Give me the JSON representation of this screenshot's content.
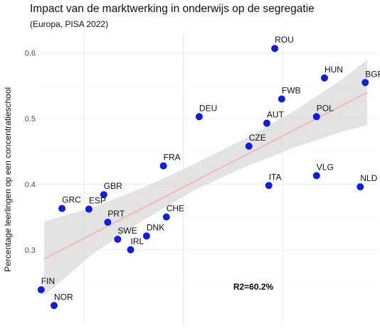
{
  "header": {
    "title": "Impact van de marktwerking in onderwijs op de segregatie",
    "subtitle": "(Europa, PISA 2022)"
  },
  "chart_data": {
    "type": "scatter",
    "title": "Impact van de marktwerking in onderwijs op de segregatie",
    "subtitle": "(Europa, PISA 2022)",
    "xlabel": "",
    "ylabel": "Percentage leerlingen op een concentratieschool",
    "xlim": [
      -1.45,
      1.95
    ],
    "ylim": [
      0.185,
      0.63
    ],
    "yticks": [
      0.3,
      0.4,
      0.5,
      0.6
    ],
    "ytick_labels": [
      "0.3",
      "0.4",
      "0.5",
      "0.6"
    ],
    "xgrid": [
      -1.0,
      0.0,
      1.0
    ],
    "grid": true,
    "annotation": "R2=60.2%",
    "point_color": "#0a1ee8",
    "trend_color": "#f4b6c2",
    "ci_color": "#d9d9d9",
    "trend_line": {
      "x": [
        -1.4,
        1.85
      ],
      "y": [
        0.286,
        0.54
      ]
    },
    "confidence_band": {
      "x": [
        -1.4,
        -0.9,
        -0.4,
        0.1,
        0.6,
        1.1,
        1.6,
        1.85
      ],
      "lower": [
        0.23,
        0.295,
        0.345,
        0.39,
        0.425,
        0.455,
        0.48,
        0.49
      ],
      "upper": [
        0.343,
        0.365,
        0.395,
        0.43,
        0.468,
        0.51,
        0.56,
        0.59
      ]
    },
    "points": [
      {
        "label": "ROU",
        "x": 0.92,
        "y": 0.607
      },
      {
        "label": "HUN",
        "x": 1.42,
        "y": 0.562
      },
      {
        "label": "BGR",
        "x": 1.83,
        "y": 0.555
      },
      {
        "label": "FWB",
        "x": 0.99,
        "y": 0.53
      },
      {
        "label": "DEU",
        "x": 0.16,
        "y": 0.503
      },
      {
        "label": "POL",
        "x": 1.34,
        "y": 0.503
      },
      {
        "label": "AUT",
        "x": 0.84,
        "y": 0.493
      },
      {
        "label": "CZE",
        "x": 0.66,
        "y": 0.458
      },
      {
        "label": "FRA",
        "x": -0.2,
        "y": 0.428
      },
      {
        "label": "VLG",
        "x": 1.34,
        "y": 0.413
      },
      {
        "label": "ITA",
        "x": 0.86,
        "y": 0.398
      },
      {
        "label": "NLD",
        "x": 1.78,
        "y": 0.396
      },
      {
        "label": "GBR",
        "x": -0.8,
        "y": 0.384
      },
      {
        "label": "GRC",
        "x": -1.22,
        "y": 0.363
      },
      {
        "label": "ESP",
        "x": -0.95,
        "y": 0.362
      },
      {
        "label": "CHE",
        "x": -0.17,
        "y": 0.35
      },
      {
        "label": "PRT",
        "x": -0.76,
        "y": 0.342
      },
      {
        "label": "DNK",
        "x": -0.37,
        "y": 0.321
      },
      {
        "label": "SWE",
        "x": -0.66,
        "y": 0.316
      },
      {
        "label": "IRL",
        "x": -0.53,
        "y": 0.3
      },
      {
        "label": "FIN",
        "x": -1.43,
        "y": 0.239
      },
      {
        "label": "NOR",
        "x": -1.3,
        "y": 0.215
      }
    ]
  }
}
